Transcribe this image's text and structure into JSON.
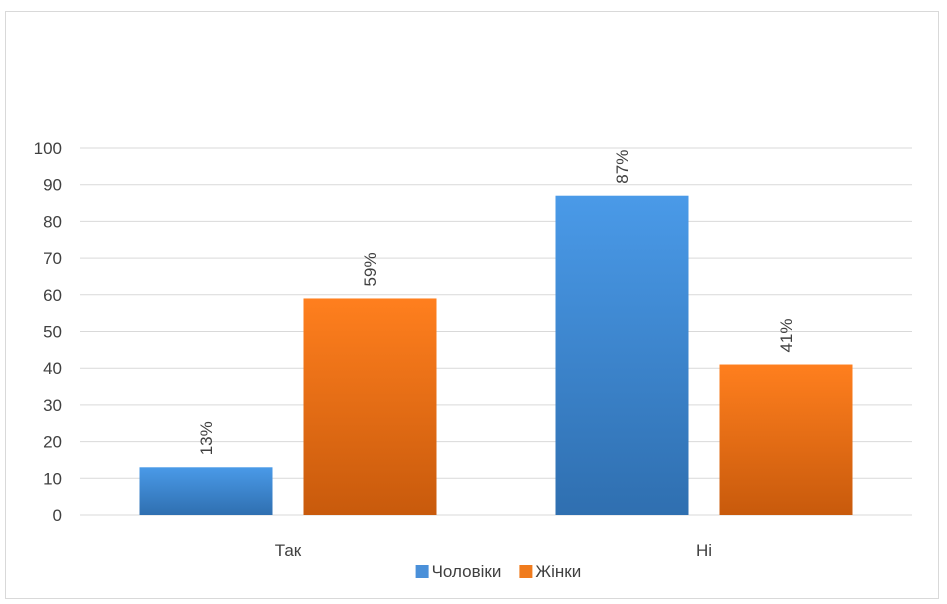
{
  "chart_data": {
    "type": "bar",
    "categories": [
      "Так",
      "Ні"
    ],
    "series": [
      {
        "name": "Чоловіки",
        "values": [
          13,
          87
        ],
        "labels": [
          "13%",
          "87%"
        ],
        "color": "#4a90d9"
      },
      {
        "name": "Жінки",
        "values": [
          59,
          41
        ],
        "labels": [
          "59%",
          "41%"
        ],
        "color": "#f07b1d"
      }
    ],
    "yticks": [
      "0",
      "10",
      "20",
      "30",
      "40",
      "50",
      "60",
      "70",
      "80",
      "90",
      "100"
    ],
    "ylim": [
      0,
      100
    ],
    "grid": true,
    "legend_position": "bottom"
  }
}
